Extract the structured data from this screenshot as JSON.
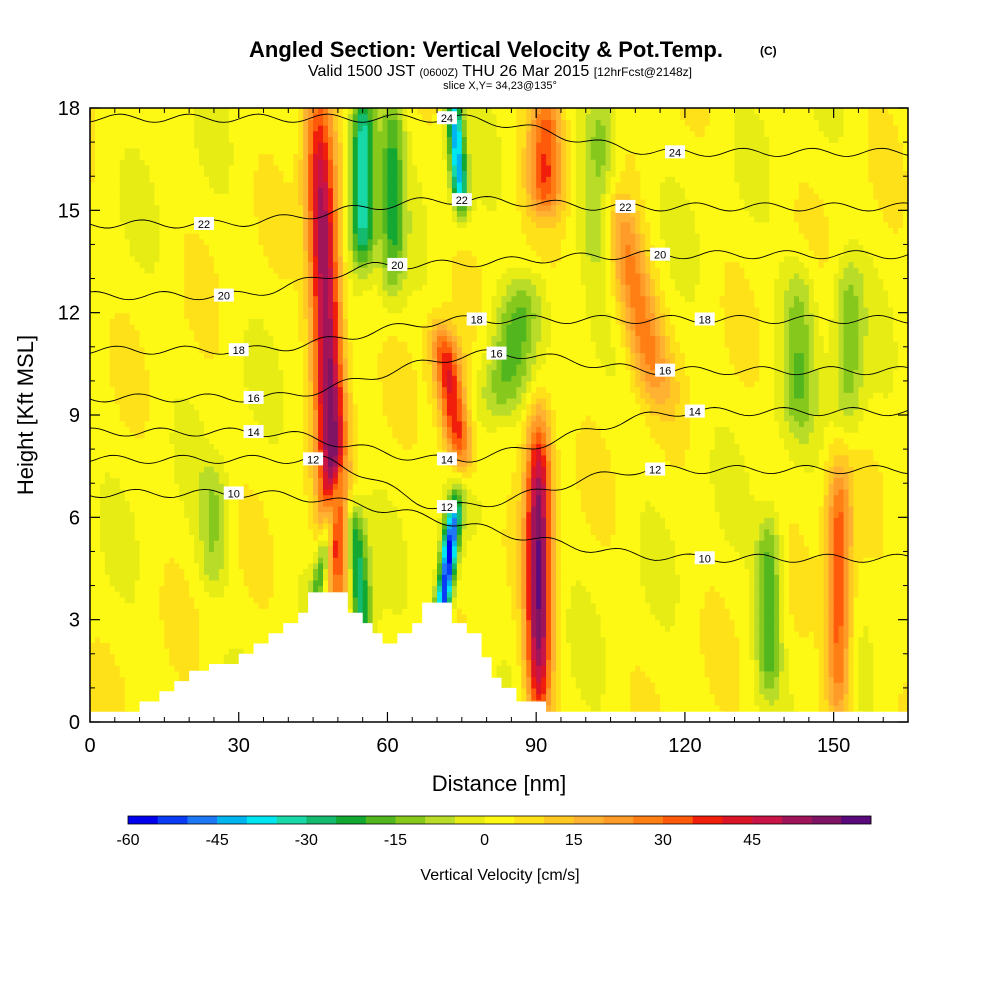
{
  "chart_data": {
    "type": "heatmap",
    "title": "Angled Section: Vertical Velocity & Pot.Temp.",
    "title_mark": "(C)",
    "subtitle": {
      "valid": "Valid 1500 JST",
      "utc": "(0600Z)",
      "date": "THU 26 Mar 2015",
      "fcst": "[12hrFcst@2148z]",
      "slice": "slice X,Y= 34,23@135°"
    },
    "xlabel": "Distance [nm]",
    "ylabel": "Height [Kft MSL]",
    "xlim": [
      0,
      165
    ],
    "ylim": [
      0,
      18
    ],
    "x_ticks": [
      0,
      30,
      60,
      90,
      120,
      150
    ],
    "y_ticks": [
      0,
      3,
      6,
      9,
      12,
      15,
      18
    ],
    "colorbar": {
      "label": "Vertical Velocity [cm/s]",
      "ticks": [
        -60,
        -45,
        -30,
        -15,
        0,
        15,
        30,
        45
      ],
      "min": -60,
      "max": 55,
      "step": 5,
      "colors": [
        "#0000ee",
        "#0a3cf5",
        "#1e78f5",
        "#00b4f0",
        "#00e6f0",
        "#18d8a8",
        "#14bb6e",
        "#12a832",
        "#52b61e",
        "#86c91c",
        "#b9dc28",
        "#e6ec14",
        "#fef914",
        "#ffe119",
        "#ffc823",
        "#ffb232",
        "#ff9b28",
        "#ff7f14",
        "#ff5a0a",
        "#f01e0a",
        "#dc1428",
        "#c81446",
        "#a0145a",
        "#801464",
        "#5a0a7a"
      ]
    },
    "vertical_velocity_features": [
      {
        "x": 48,
        "z_base": 4,
        "z_top": 18,
        "value": 55,
        "width": 3,
        "tilt": -0.3
      },
      {
        "x": 90.5,
        "z_base": 0.5,
        "z_top": 8.5,
        "value": 55,
        "width": 2.6,
        "tilt": 0
      },
      {
        "x": 73,
        "z_base": 8,
        "z_top": 11,
        "value": 40,
        "width": 2.8,
        "tilt": -1.0
      },
      {
        "x": 151,
        "z_base": 0.6,
        "z_top": 7,
        "value": 32,
        "width": 2.5,
        "tilt": 0
      },
      {
        "x": 92,
        "z_base": 15.5,
        "z_top": 18,
        "value": 32,
        "width": 3.5,
        "tilt": 0
      },
      {
        "x": 110,
        "z_base": 10,
        "z_top": 15,
        "value": 25,
        "width": 4,
        "tilt": -1.5
      },
      {
        "x": 72,
        "z_base": 2.8,
        "z_top": 6,
        "value": -60,
        "width": 1.6,
        "tilt": 0.8
      },
      {
        "x": 74,
        "z_base": 15.5,
        "z_top": 18,
        "value": -45,
        "width": 1.6,
        "tilt": -0.5
      },
      {
        "x": 54,
        "z_base": 2.5,
        "z_top": 6,
        "value": -35,
        "width": 2.2,
        "tilt": -0.6
      },
      {
        "x": 48,
        "z_base": 4,
        "z_top": 7,
        "value": -30,
        "width": 1.5,
        "tilt": 1.2
      },
      {
        "x": 55,
        "z_base": 14,
        "z_top": 18,
        "value": -40,
        "width": 2.5,
        "tilt": 0
      },
      {
        "x": 61,
        "z_base": 13,
        "z_top": 18,
        "value": -22,
        "width": 2.5,
        "tilt": 0
      },
      {
        "x": 103,
        "z_base": 14,
        "z_top": 18,
        "value": -18,
        "width": 3.5,
        "tilt": 0
      },
      {
        "x": 85,
        "z_base": 9.5,
        "z_top": 12.5,
        "value": -18,
        "width": 5,
        "tilt": 1.5
      },
      {
        "x": 137,
        "z_base": 1.5,
        "z_top": 5.5,
        "value": -22,
        "width": 2.5,
        "tilt": 0
      },
      {
        "x": 143,
        "z_base": 9,
        "z_top": 13,
        "value": -15,
        "width": 3.5,
        "tilt": 0
      },
      {
        "x": 153,
        "z_base": 9,
        "z_top": 13,
        "value": -15,
        "width": 3,
        "tilt": 0
      },
      {
        "x": 25,
        "z_base": 4.5,
        "z_top": 7,
        "value": -12,
        "width": 3,
        "tilt": 0
      }
    ],
    "theta_contours": [
      {
        "value": 10,
        "labels": [
          {
            "x": 29,
            "z": 6.7
          },
          {
            "x": 124,
            "z": 4.8
          }
        ]
      },
      {
        "value": 12,
        "labels": [
          {
            "x": 45,
            "z": 7.7
          },
          {
            "x": 72,
            "z": 6.3
          },
          {
            "x": 114,
            "z": 7.4
          }
        ]
      },
      {
        "value": 14,
        "labels": [
          {
            "x": 33,
            "z": 8.5
          },
          {
            "x": 72,
            "z": 7.7
          },
          {
            "x": 122,
            "z": 9.1
          }
        ]
      },
      {
        "value": 16,
        "labels": [
          {
            "x": 33,
            "z": 9.5
          },
          {
            "x": 82,
            "z": 10.8
          },
          {
            "x": 116,
            "z": 10.3
          }
        ]
      },
      {
        "value": 18,
        "labels": [
          {
            "x": 30,
            "z": 10.9
          },
          {
            "x": 78,
            "z": 11.8
          },
          {
            "x": 124,
            "z": 11.8
          }
        ]
      },
      {
        "value": 20,
        "labels": [
          {
            "x": 27,
            "z": 12.5
          },
          {
            "x": 62,
            "z": 13.4
          },
          {
            "x": 115,
            "z": 13.7
          }
        ]
      },
      {
        "value": 22,
        "labels": [
          {
            "x": 23,
            "z": 14.6
          },
          {
            "x": 75,
            "z": 15.3
          },
          {
            "x": 108,
            "z": 15.1
          }
        ]
      },
      {
        "value": 24,
        "labels": [
          {
            "x": 72,
            "z": 17.7
          },
          {
            "x": 118,
            "z": 16.7
          }
        ]
      }
    ],
    "terrain_steps": [
      [
        0,
        0.3
      ],
      [
        10,
        0.6
      ],
      [
        14,
        0.9
      ],
      [
        17,
        1.2
      ],
      [
        20,
        1.5
      ],
      [
        24,
        1.7
      ],
      [
        30,
        2.0
      ],
      [
        33,
        2.3
      ],
      [
        36,
        2.6
      ],
      [
        39,
        2.9
      ],
      [
        42,
        3.2
      ],
      [
        44,
        3.8
      ],
      [
        52,
        3.2
      ],
      [
        55,
        2.9
      ],
      [
        57,
        2.6
      ],
      [
        59,
        2.3
      ],
      [
        62,
        2.6
      ],
      [
        65,
        2.9
      ],
      [
        67,
        3.5
      ],
      [
        73,
        2.9
      ],
      [
        76,
        2.6
      ],
      [
        79,
        1.9
      ],
      [
        81,
        1.3
      ],
      [
        83,
        1.0
      ],
      [
        86,
        0.6
      ],
      [
        92,
        0.3
      ],
      [
        165,
        0.3
      ]
    ]
  }
}
